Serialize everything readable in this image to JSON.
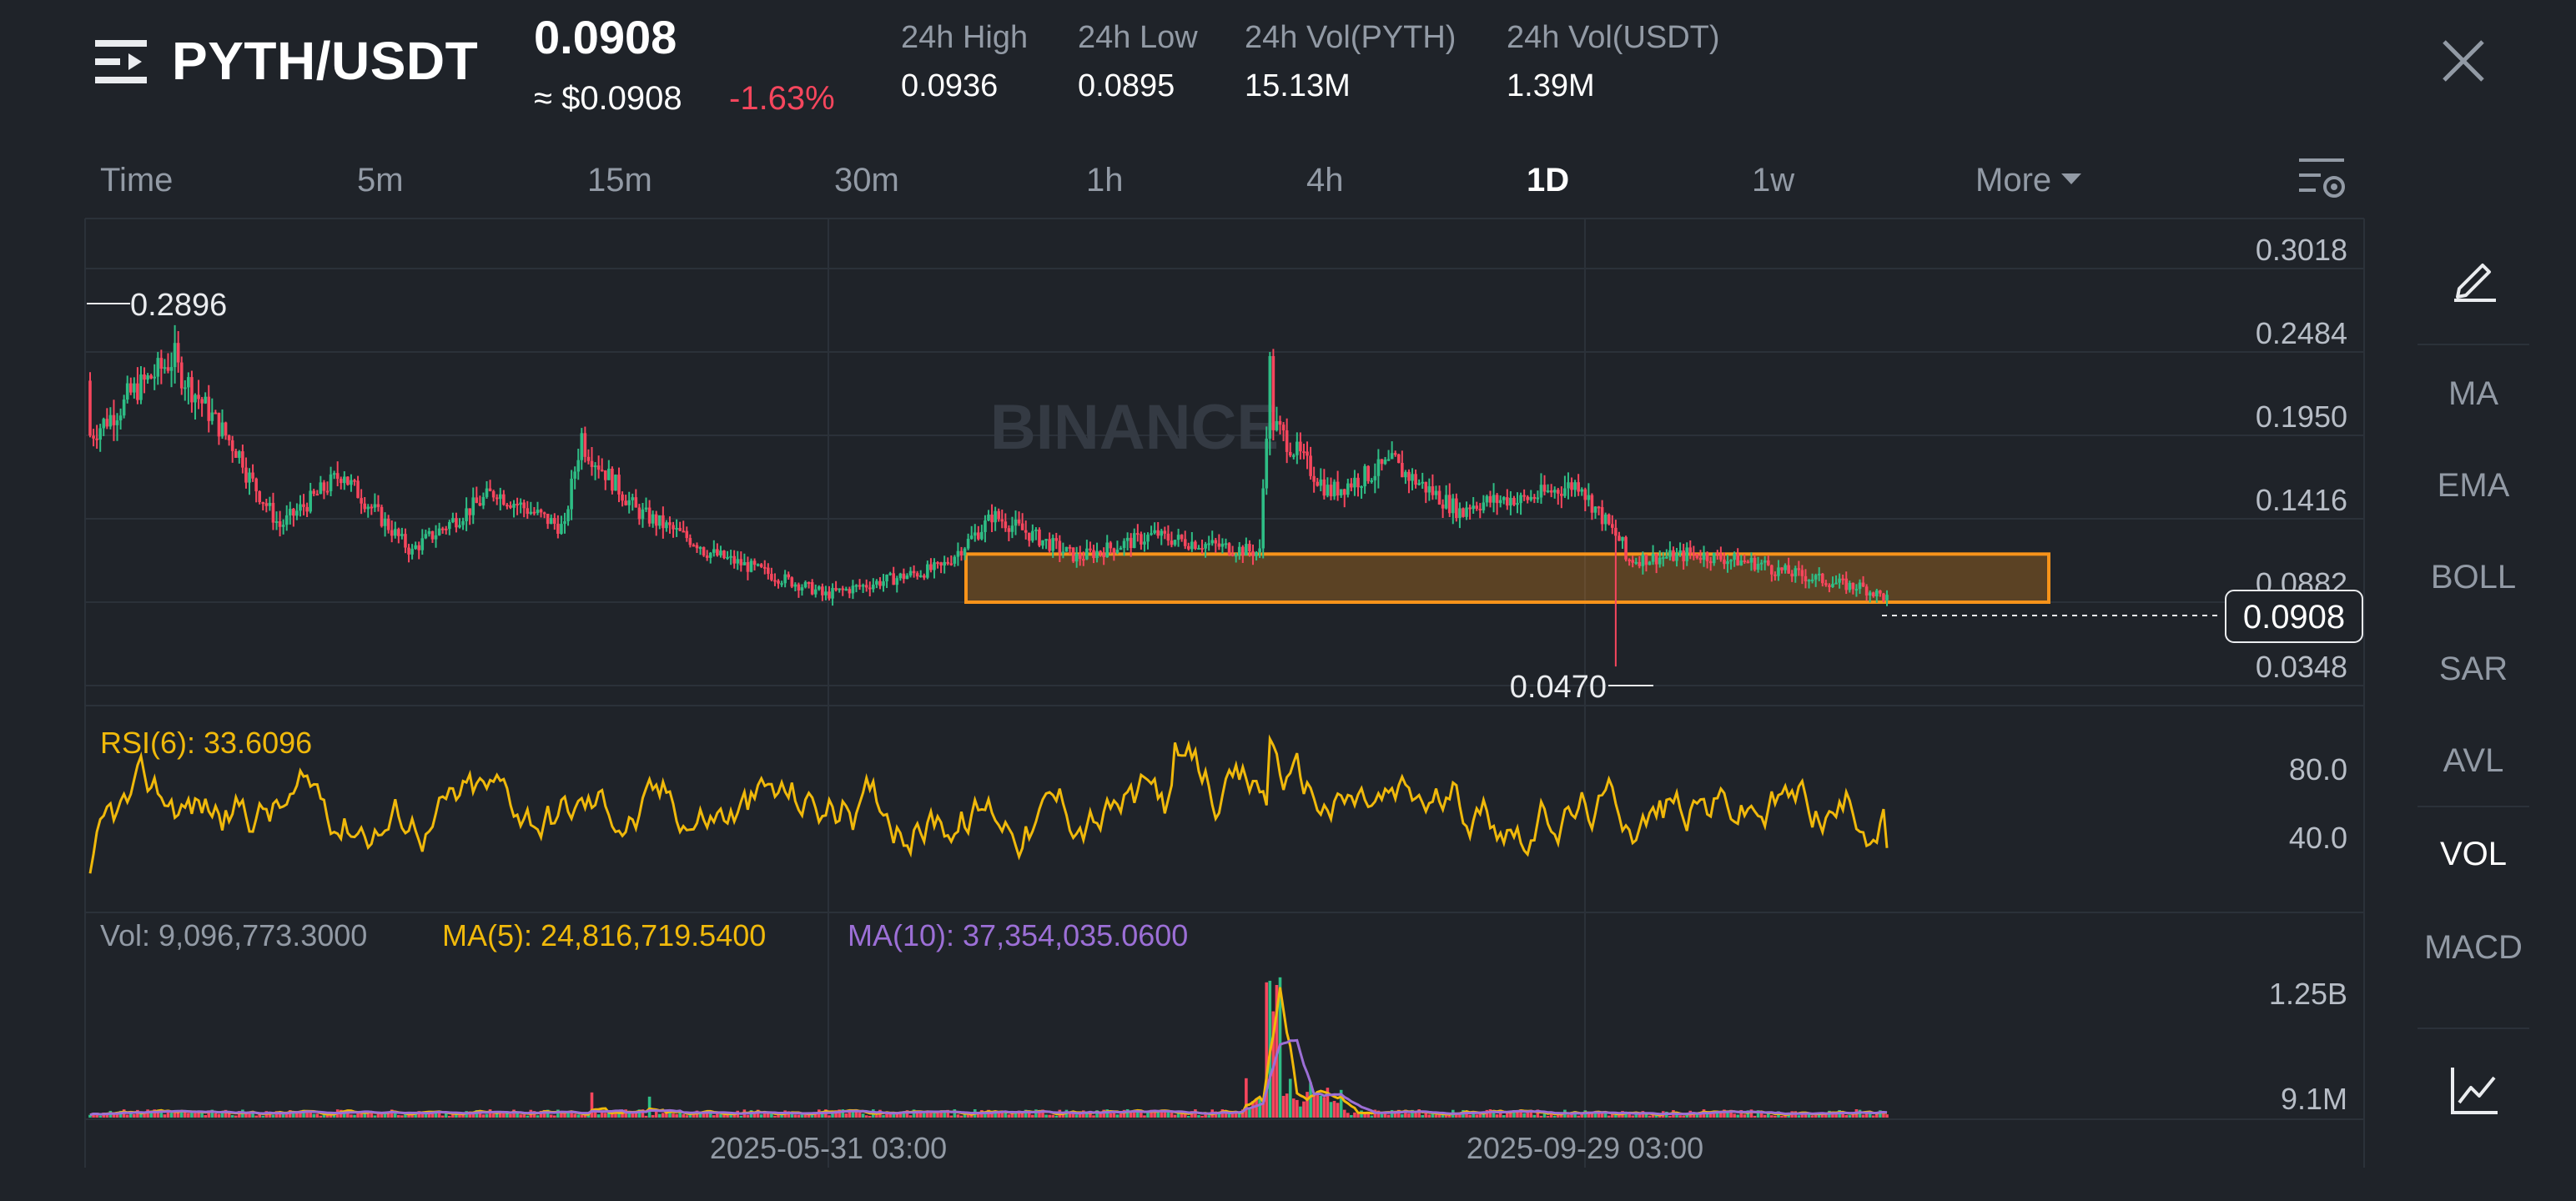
{
  "header": {
    "pair": "PYTH/USDT",
    "price": "0.0908",
    "usd_price": "≈ $0.0908",
    "change": "-1.63%",
    "stats": [
      {
        "label": "24h High",
        "value": "0.0936"
      },
      {
        "label": "24h Low",
        "value": "0.0895"
      },
      {
        "label": "24h Vol(PYTH)",
        "value": "15.13M"
      },
      {
        "label": "24h Vol(USDT)",
        "value": "1.39M"
      }
    ]
  },
  "intervals": [
    {
      "label": "Time",
      "active": false
    },
    {
      "label": "5m",
      "active": false
    },
    {
      "label": "15m",
      "active": false
    },
    {
      "label": "30m",
      "active": false
    },
    {
      "label": "1h",
      "active": false
    },
    {
      "label": "4h",
      "active": false
    },
    {
      "label": "1D",
      "active": true
    },
    {
      "label": "1w",
      "active": false
    },
    {
      "label": "More",
      "active": false
    }
  ],
  "chart": {
    "watermark": "BINANCE",
    "price_axis": [
      "0.3018",
      "0.2484",
      "0.1950",
      "0.1416",
      "0.0882",
      "0.0348"
    ],
    "price_axis_values": [
      0.3018,
      0.2484,
      0.195,
      0.1416,
      0.0882,
      0.0348
    ],
    "current_price": "0.0908",
    "high_marker": "0.2896",
    "low_marker": "0.0470",
    "rsi_label": "RSI(6): 33.6096",
    "rsi_axis": [
      "80.0",
      "40.0"
    ],
    "vol_label": "Vol: 9,096,773.3000",
    "ma5_label": "MA(5): 24,816,719.5400",
    "ma10_label": "MA(10): 37,354,035.0600",
    "vol_axis": [
      "1.25B",
      "9.1M"
    ],
    "time_axis": [
      "2025-05-31 03:00",
      "2025-09-29 03:00"
    ],
    "zone": {
      "low": 0.0882,
      "high": 0.119
    },
    "colors": {
      "up": "#2ebd85",
      "down": "#f6465d",
      "rsi": "#f0b90b",
      "ma10": "#9c6fd6",
      "zone": "#f7931a"
    }
  },
  "tools": [
    "MA",
    "EMA",
    "BOLL",
    "SAR",
    "AVL",
    "VOL",
    "MACD"
  ],
  "active_tool": "VOL",
  "icons": {
    "menu": "menu-icon",
    "close": "close-icon",
    "settings": "chart-settings-icon",
    "draw": "pencil-icon",
    "indicator": "line-chart-icon"
  }
}
